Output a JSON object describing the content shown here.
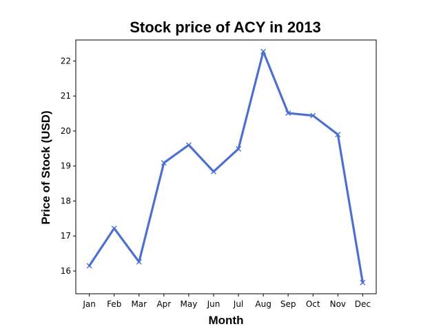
{
  "chart_data": {
    "type": "line",
    "title": "Stock price of ACY in 2013",
    "xlabel": "Month",
    "ylabel": "Price of Stock (USD)",
    "categories": [
      "Jan",
      "Feb",
      "Mar",
      "Apr",
      "May",
      "Jun",
      "Jul",
      "Aug",
      "Sep",
      "Oct",
      "Nov",
      "Dec"
    ],
    "series": [
      {
        "values": [
          16.15,
          17.22,
          16.26,
          19.09,
          19.6,
          18.84,
          19.49,
          22.27,
          20.51,
          20.44,
          19.9,
          15.67
        ],
        "color": "#4c6fd0",
        "marker": "x"
      }
    ],
    "ylim": [
      15.35,
      22.6
    ],
    "yticks": [
      16,
      17,
      18,
      19,
      20,
      21,
      22
    ],
    "grid": false,
    "legend": "none"
  }
}
